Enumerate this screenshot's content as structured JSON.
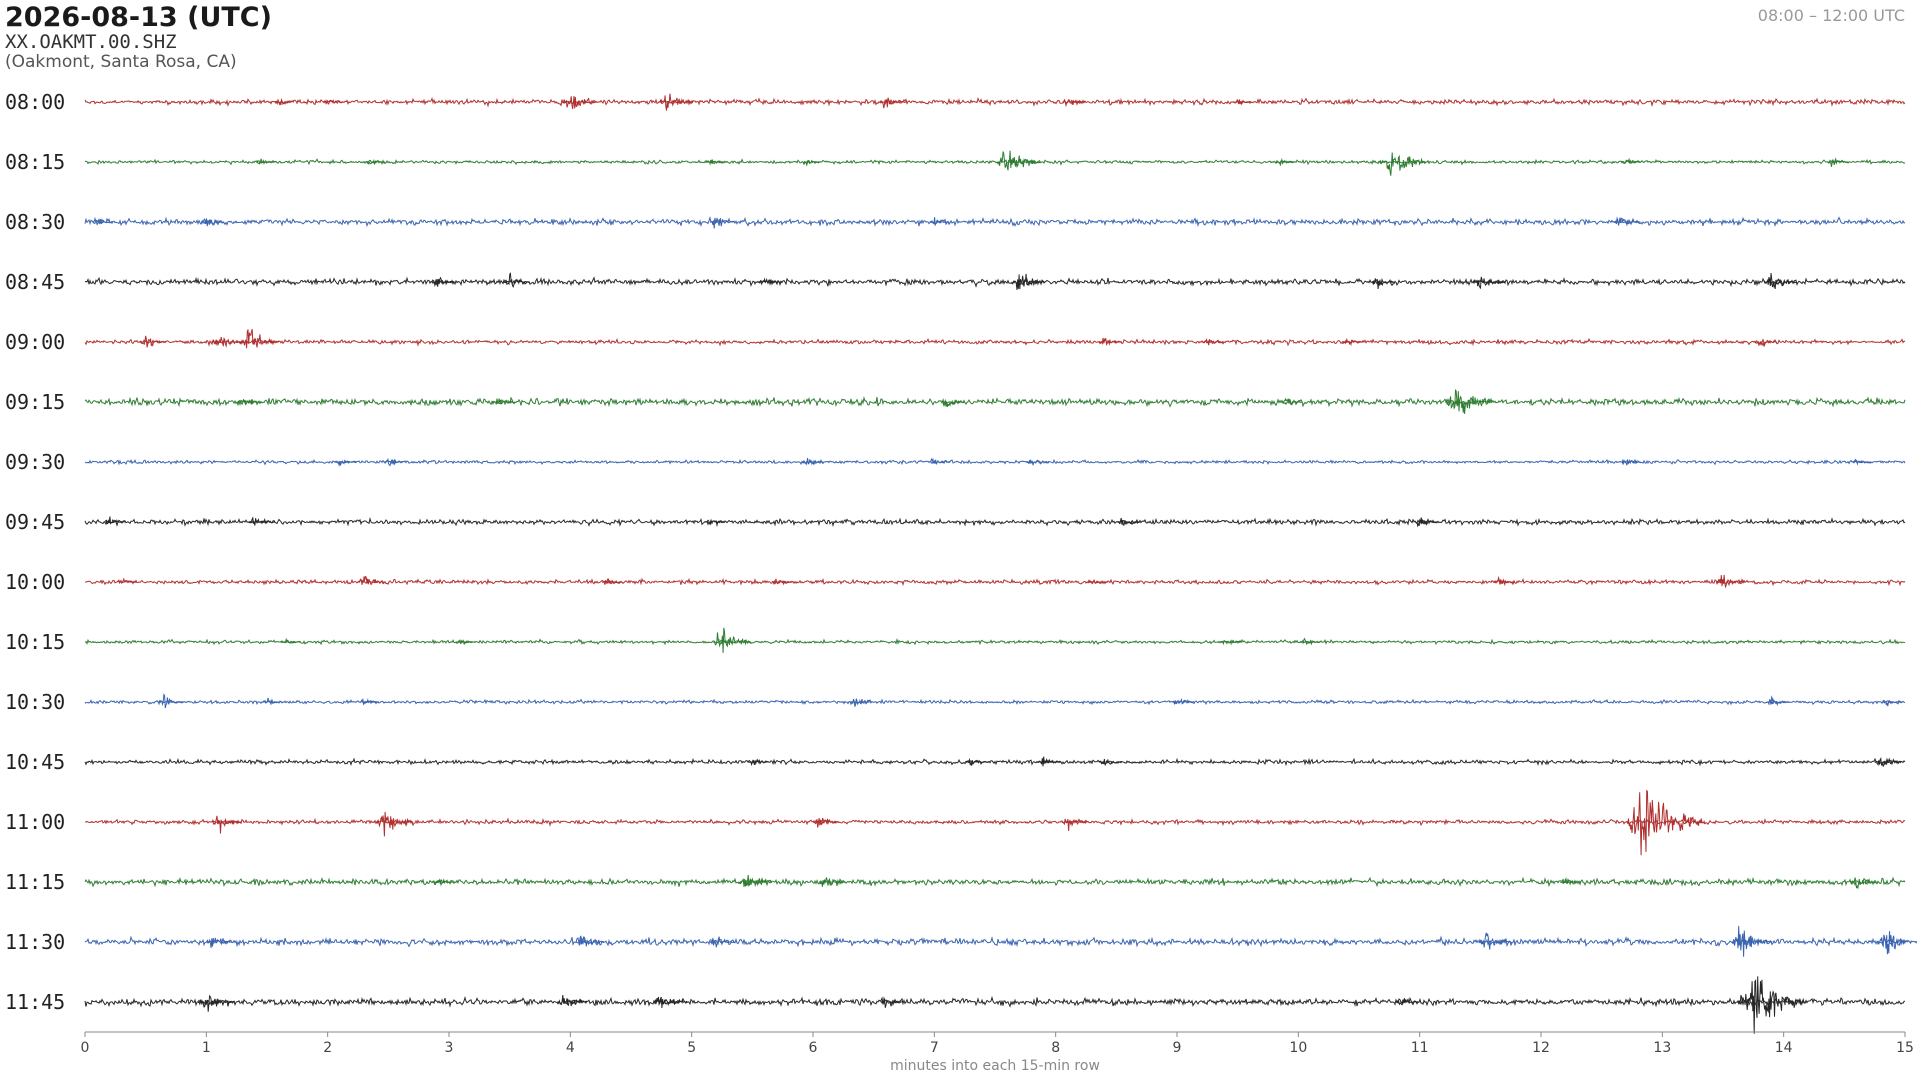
{
  "chart_data": {
    "type": "helicorder",
    "title": "2026-08-13  (UTC)",
    "subtitle": "XX.OAKMT.00.SHZ",
    "location": "(Oakmont, Santa Rosa, CA)",
    "time_range": "08:00 – 12:00 UTC",
    "x_label": "minutes into each 15-min row",
    "xlim": [
      0,
      15
    ],
    "xticks": [
      0,
      1,
      2,
      3,
      4,
      5,
      6,
      7,
      8,
      9,
      10,
      11,
      12,
      13,
      14,
      15
    ],
    "series": [
      {
        "name": "08:00",
        "color": "#b03030",
        "noise": 0.06,
        "bursts_x": [
          1.6,
          2.0,
          4.0,
          4.8,
          6.6,
          8.1,
          9.5
        ],
        "bursts_amplitude": [
          0.1,
          0.12,
          0.32,
          0.3,
          0.2,
          0.14,
          0.1
        ]
      },
      {
        "name": "08:15",
        "color": "#2f7d32",
        "noise": 0.04,
        "bursts_x": [
          1.45,
          2.35,
          5.15,
          5.95,
          7.6,
          9.85,
          10.75,
          12.7,
          14.4
        ],
        "bursts_amplitude": [
          0.1,
          0.1,
          0.1,
          0.08,
          0.45,
          0.1,
          0.5,
          0.1,
          0.12
        ]
      },
      {
        "name": "08:30",
        "color": "#3a64b0",
        "noise": 0.07,
        "bursts_x": [
          0.1,
          1.0,
          5.2,
          7.0,
          12.65
        ],
        "bursts_amplitude": [
          0.12,
          0.15,
          0.18,
          0.1,
          0.2
        ]
      },
      {
        "name": "08:45",
        "color": "#262626",
        "noise": 0.07,
        "bursts_x": [
          2.9,
          3.5,
          5.6,
          7.7,
          10.65,
          11.5,
          13.9
        ],
        "bursts_amplitude": [
          0.15,
          0.2,
          0.15,
          0.3,
          0.15,
          0.28,
          0.28
        ]
      },
      {
        "name": "09:00",
        "color": "#b03030",
        "noise": 0.05,
        "bursts_x": [
          0.5,
          1.1,
          1.35,
          8.4,
          9.25,
          10.4,
          13.8
        ],
        "bursts_amplitude": [
          0.2,
          0.25,
          0.38,
          0.15,
          0.12,
          0.12,
          0.15
        ]
      },
      {
        "name": "09:15",
        "color": "#2f7d32",
        "noise": 0.08,
        "bursts_x": [
          1.3,
          3.4,
          7.1,
          9.9,
          11.3
        ],
        "bursts_amplitude": [
          0.15,
          0.15,
          0.15,
          0.12,
          0.5
        ]
      },
      {
        "name": "09:30",
        "color": "#3a64b0",
        "noise": 0.04,
        "bursts_x": [
          2.1,
          2.5,
          5.95,
          7.0,
          7.8,
          12.7,
          14.6
        ],
        "bursts_amplitude": [
          0.12,
          0.1,
          0.12,
          0.12,
          0.15,
          0.1,
          0.1
        ]
      },
      {
        "name": "09:45",
        "color": "#262626",
        "noise": 0.06,
        "bursts_x": [
          0.2,
          1.4,
          5.15,
          8.55,
          11.0
        ],
        "bursts_amplitude": [
          0.12,
          0.2,
          0.1,
          0.15,
          0.15
        ]
      },
      {
        "name": "10:00",
        "color": "#b03030",
        "noise": 0.05,
        "bursts_x": [
          0.3,
          2.3,
          4.3,
          5.7,
          8.3,
          11.65,
          13.5
        ],
        "bursts_amplitude": [
          0.1,
          0.2,
          0.1,
          0.12,
          0.1,
          0.12,
          0.22
        ]
      },
      {
        "name": "10:15",
        "color": "#2f7d32",
        "noise": 0.04,
        "bursts_x": [
          1.65,
          3.1,
          5.25,
          9.4,
          10.05
        ],
        "bursts_amplitude": [
          0.1,
          0.1,
          0.35,
          0.12,
          0.12
        ]
      },
      {
        "name": "10:30",
        "color": "#3a64b0",
        "noise": 0.04,
        "bursts_x": [
          0.65,
          1.5,
          2.3,
          6.35,
          9.0,
          13.9,
          14.85
        ],
        "bursts_amplitude": [
          0.2,
          0.1,
          0.1,
          0.15,
          0.14,
          0.15,
          0.1
        ]
      },
      {
        "name": "10:45",
        "color": "#262626",
        "noise": 0.05,
        "bursts_x": [
          5.5,
          7.3,
          7.9,
          8.4,
          14.8
        ],
        "bursts_amplitude": [
          0.12,
          0.15,
          0.15,
          0.15,
          0.2
        ]
      },
      {
        "name": "11:00",
        "color": "#b03030",
        "noise": 0.05,
        "bursts_x": [
          1.1,
          2.47,
          6.05,
          8.1,
          12.85
        ],
        "bursts_amplitude": [
          0.25,
          0.35,
          0.2,
          0.2,
          0.95
        ]
      },
      {
        "name": "11:15",
        "color": "#2f7d32",
        "noise": 0.07,
        "bursts_x": [
          2.9,
          5.45,
          6.1,
          12.2,
          14.6
        ],
        "bursts_amplitude": [
          0.12,
          0.3,
          0.2,
          0.12,
          0.2
        ]
      },
      {
        "name": "11:30",
        "color": "#3a64b0",
        "noise": 0.08,
        "bursts_x": [
          1.05,
          4.1,
          5.2,
          11.55,
          13.65,
          14.85
        ],
        "bursts_amplitude": [
          0.2,
          0.22,
          0.18,
          0.3,
          0.4,
          0.38
        ]
      },
      {
        "name": "11:45",
        "color": "#262626",
        "noise": 0.08,
        "bursts_x": [
          1.0,
          3.95,
          4.75,
          6.6,
          10.85,
          13.75
        ],
        "bursts_amplitude": [
          0.35,
          0.25,
          0.3,
          0.15,
          0.15,
          0.8
        ]
      }
    ]
  }
}
